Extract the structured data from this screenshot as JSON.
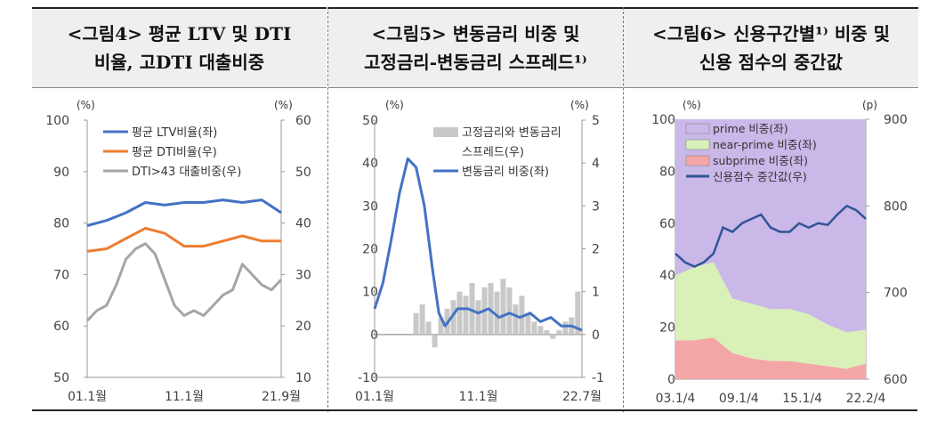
{
  "chart_data": [
    {
      "type": "line",
      "title": [
        "<그림4> 평균 LTV 및 DTI",
        "비율, 고DTI 대출비중"
      ],
      "left_unit": "(%)",
      "right_unit": "(%)",
      "yleft_lim": [
        50,
        100
      ],
      "yleft_ticks": [
        "50",
        "60",
        "70",
        "80",
        "90",
        "100"
      ],
      "yright_lim": [
        10,
        60
      ],
      "yright_ticks": [
        "10",
        "20",
        "30",
        "40",
        "50",
        "60"
      ],
      "x_ticks": [
        "01.1월",
        "11.1월",
        "21.9월"
      ],
      "legend": [
        "평균 LTV비율(좌)",
        "평균 DTI비율(우)",
        "DTI>43 대출비중(우)"
      ],
      "series": [
        {
          "name": "평균 LTV비율(좌)",
          "axis": "left",
          "color": "#4472c4",
          "x": [
            0,
            0.1,
            0.2,
            0.3,
            0.4,
            0.5,
            0.6,
            0.7,
            0.8,
            0.9,
            1.0
          ],
          "y": [
            79.5,
            80.5,
            82,
            84,
            83.5,
            84,
            84,
            84.5,
            84,
            84.5,
            82
          ]
        },
        {
          "name": "평균 DTI비율(우)",
          "axis": "right",
          "color": "#ed7d31",
          "x": [
            0,
            0.1,
            0.2,
            0.3,
            0.4,
            0.5,
            0.6,
            0.7,
            0.8,
            0.9,
            1.0
          ],
          "y": [
            34.5,
            35,
            37,
            39,
            38,
            35.5,
            35.5,
            36.5,
            37.5,
            36.5,
            36.5
          ]
        },
        {
          "name": "DTI>43 대출비중(우)",
          "axis": "right",
          "color": "#a5a5a5",
          "x": [
            0,
            0.05,
            0.1,
            0.15,
            0.2,
            0.25,
            0.3,
            0.35,
            0.4,
            0.45,
            0.5,
            0.55,
            0.6,
            0.65,
            0.7,
            0.75,
            0.8,
            0.85,
            0.9,
            0.95,
            1.0
          ],
          "y": [
            21,
            23,
            24,
            28,
            33,
            35,
            36,
            34,
            29,
            24,
            22,
            23,
            22,
            24,
            26,
            27,
            32,
            30,
            28,
            27,
            29
          ]
        }
      ]
    },
    {
      "type": "bar+line",
      "title": [
        "<그림5> 변동금리 비중 및",
        "고정금리-변동금리 스프레드¹⁾"
      ],
      "left_unit": "(%)",
      "right_unit": "(%)",
      "yleft_lim": [
        -10,
        50
      ],
      "yleft_ticks": [
        "-10",
        "0",
        "10",
        "20",
        "30",
        "40",
        "50"
      ],
      "yright_lim": [
        -1,
        5
      ],
      "yright_ticks": [
        "-1",
        "0",
        "1",
        "2",
        "3",
        "4",
        "5"
      ],
      "x_ticks": [
        "01.1월",
        "11.1월",
        "22.7월"
      ],
      "legend": [
        "고정금리와 변동금리 스프레드(우)",
        "변동금리 비중(좌)"
      ],
      "series": [
        {
          "name": "고정금리와 변동금리 스프레드(우)",
          "axis": "right",
          "kind": "bar",
          "color": "#c8c8c8",
          "x": [
            0.2,
            0.23,
            0.26,
            0.29,
            0.32,
            0.35,
            0.38,
            0.41,
            0.44,
            0.47,
            0.5,
            0.53,
            0.56,
            0.59,
            0.62,
            0.65,
            0.68,
            0.71,
            0.74,
            0.77,
            0.8,
            0.83,
            0.86,
            0.89,
            0.92,
            0.95,
            0.98
          ],
          "y": [
            0.5,
            0.7,
            0.3,
            -0.3,
            0.4,
            0.6,
            0.8,
            1.0,
            0.9,
            1.2,
            0.8,
            1.1,
            1.2,
            1.0,
            1.3,
            1.1,
            0.7,
            0.9,
            0.5,
            0.3,
            0.2,
            0.1,
            -0.1,
            0.1,
            0.3,
            0.4,
            1.0
          ]
        },
        {
          "name": "변동금리 비중(좌)",
          "axis": "left",
          "kind": "line",
          "color": "#4472c4",
          "x": [
            0,
            0.04,
            0.08,
            0.12,
            0.16,
            0.2,
            0.24,
            0.28,
            0.31,
            0.34,
            0.37,
            0.4,
            0.45,
            0.5,
            0.55,
            0.6,
            0.65,
            0.7,
            0.75,
            0.8,
            0.85,
            0.9,
            0.95,
            1.0
          ],
          "y": [
            6,
            12,
            22,
            33,
            41,
            39,
            30,
            15,
            5,
            2,
            4,
            6,
            6,
            5,
            6,
            4,
            5,
            4,
            5,
            3,
            4,
            2,
            2,
            1
          ]
        }
      ]
    },
    {
      "type": "area+line",
      "title": [
        "<그림6> 신용구간별¹⁾ 비중 및",
        "신용 점수의 중간값"
      ],
      "left_unit": "(%)",
      "right_unit": "(p)",
      "yleft_lim": [
        0,
        100
      ],
      "yleft_ticks": [
        "0",
        "20",
        "40",
        "60",
        "80",
        "100"
      ],
      "yright_lim": [
        600,
        900
      ],
      "yright_ticks": [
        "600",
        "700",
        "800",
        "900"
      ],
      "x_ticks": [
        "03.1/4",
        "09.1/4",
        "15.1/4",
        "22.2/4"
      ],
      "legend": [
        "prime 비중(좌)",
        "near-prime 비중(좌)",
        "subprime 비중(좌)",
        "신용점수 중간값(우)"
      ],
      "series": [
        {
          "name": "subprime 비중(좌)",
          "axis": "left",
          "kind": "area",
          "color": "#f4a6a6",
          "x": [
            0,
            0.1,
            0.2,
            0.3,
            0.4,
            0.5,
            0.6,
            0.7,
            0.8,
            0.9,
            1.0
          ],
          "y": [
            15,
            15,
            16,
            10,
            8,
            7,
            7,
            6,
            5,
            4,
            6
          ]
        },
        {
          "name": "near-prime 비중(좌)",
          "axis": "left",
          "kind": "area",
          "color": "#d9f0b8",
          "x": [
            0,
            0.1,
            0.2,
            0.3,
            0.4,
            0.5,
            0.6,
            0.7,
            0.8,
            0.9,
            1.0
          ],
          "y": [
            25,
            28,
            29,
            21,
            21,
            20,
            20,
            19,
            16,
            14,
            13
          ]
        },
        {
          "name": "prime 비중(좌)",
          "axis": "left",
          "kind": "area",
          "color": "#c9b8e8",
          "x": [
            0,
            0.1,
            0.2,
            0.3,
            0.4,
            0.5,
            0.6,
            0.7,
            0.8,
            0.9,
            1.0
          ],
          "y": [
            60,
            57,
            55,
            69,
            71,
            73,
            73,
            75,
            79,
            82,
            81
          ]
        },
        {
          "name": "신용점수 중간값(우)",
          "axis": "right",
          "kind": "line",
          "color": "#2f5597",
          "x": [
            0,
            0.05,
            0.1,
            0.15,
            0.2,
            0.25,
            0.3,
            0.35,
            0.4,
            0.45,
            0.5,
            0.55,
            0.6,
            0.65,
            0.7,
            0.75,
            0.8,
            0.85,
            0.9,
            0.95,
            1.0
          ],
          "y": [
            745,
            735,
            730,
            735,
            745,
            775,
            770,
            780,
            785,
            790,
            775,
            770,
            770,
            780,
            775,
            780,
            778,
            790,
            800,
            795,
            785
          ]
        }
      ]
    }
  ]
}
